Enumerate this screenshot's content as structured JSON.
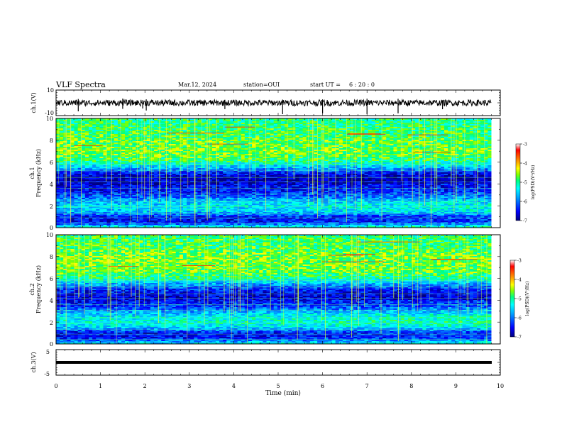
{
  "header": {
    "title": "VLF Spectra",
    "date": "Mar.12, 2024",
    "station": "station=OUI",
    "start_label": "start UT =",
    "start_time": "6 : 20 : 0"
  },
  "colorbar": {
    "label": "log(PSD)(V²/Hz)",
    "ticks": [
      "-3",
      "-4",
      "-5",
      "-6",
      "-7"
    ],
    "range": [
      -7,
      -3
    ],
    "colors": [
      "#000080",
      "#0000ff",
      "#00a0ff",
      "#00ffff",
      "#00ff80",
      "#80ff00",
      "#ffff00",
      "#ff8000",
      "#ff0000",
      "#ffffff"
    ]
  },
  "panels": {
    "ch1": {
      "ylabel": "ch.1(V)",
      "ticks": [
        "10",
        "-10"
      ],
      "range": [
        -10,
        10
      ]
    },
    "spec1": {
      "ylabel": "ch.1\nFrequency (kHz)",
      "ticks": [
        "10",
        "8",
        "6",
        "4",
        "2",
        "0"
      ],
      "range": [
        0,
        10
      ]
    },
    "spec2": {
      "ylabel": "ch.2\nFrequency (kHz)",
      "ticks": [
        "10",
        "8",
        "6",
        "4",
        "2",
        "0"
      ],
      "range": [
        0,
        10
      ]
    },
    "ch3": {
      "ylabel": "ch.3(V)",
      "ticks": [
        "5",
        "-5"
      ],
      "range": [
        -5,
        5
      ]
    }
  },
  "xaxis": {
    "label": "Time (min)",
    "ticks": [
      "0",
      "1",
      "2",
      "3",
      "4",
      "5",
      "6",
      "7",
      "8",
      "9",
      "10"
    ],
    "range": [
      0,
      10
    ]
  },
  "chart_data": {
    "type": "heatmap",
    "title": "VLF Spectra",
    "xlabel": "Time (min)",
    "xlim": [
      0,
      10
    ],
    "data_end_min": 9.8,
    "series": [
      {
        "name": "ch.1",
        "ylabel": "Frequency (kHz)",
        "ylim": [
          0,
          10
        ],
        "log_psd_profile": {
          "freq_khz": [
            0,
            0.5,
            1,
            1.5,
            2,
            2.5,
            3,
            3.5,
            4,
            4.5,
            5,
            5.5,
            6,
            6.5,
            7,
            7.5,
            8,
            8.5,
            9,
            9.5,
            10
          ],
          "log_psd": [
            -5.2,
            -6.6,
            -6.5,
            -5.6,
            -5.5,
            -5.8,
            -6.3,
            -6.6,
            -6.7,
            -6.8,
            -6.4,
            -5.6,
            -5.0,
            -4.7,
            -4.6,
            -4.7,
            -4.7,
            -4.8,
            -4.8,
            -4.9,
            -5.0
          ]
        }
      },
      {
        "name": "ch.2",
        "ylabel": "Frequency (kHz)",
        "ylim": [
          0,
          10
        ],
        "log_psd_profile": {
          "freq_khz": [
            0,
            0.5,
            1,
            1.5,
            2,
            2.5,
            3,
            3.5,
            4,
            4.5,
            5,
            5.5,
            6,
            6.5,
            7,
            7.5,
            8,
            8.5,
            9,
            9.5,
            10
          ],
          "log_psd": [
            -5.4,
            -6.5,
            -6.6,
            -5.6,
            -5.3,
            -5.4,
            -5.9,
            -6.4,
            -6.6,
            -6.6,
            -6.3,
            -5.7,
            -5.0,
            -4.7,
            -4.6,
            -4.6,
            -4.6,
            -4.7,
            -4.8,
            -4.8,
            -4.9
          ]
        }
      }
    ],
    "waveforms": [
      {
        "name": "ch.1(V)",
        "ylim": [
          -10,
          10
        ],
        "mean": 0.0,
        "noise": 0.8,
        "spike_times_min": [
          0.5,
          1.5,
          1.95,
          2.03,
          3.8,
          5.1,
          6.0,
          7.0,
          7.7,
          8.7
        ]
      },
      {
        "name": "ch.3(V)",
        "ylim": [
          -5,
          5
        ],
        "mean": 0.0,
        "noise": 0.05,
        "spike_times_min": []
      }
    ],
    "colorbar": {
      "label": "log(PSD)(V²/Hz)",
      "range": [
        -7,
        -3
      ]
    }
  }
}
